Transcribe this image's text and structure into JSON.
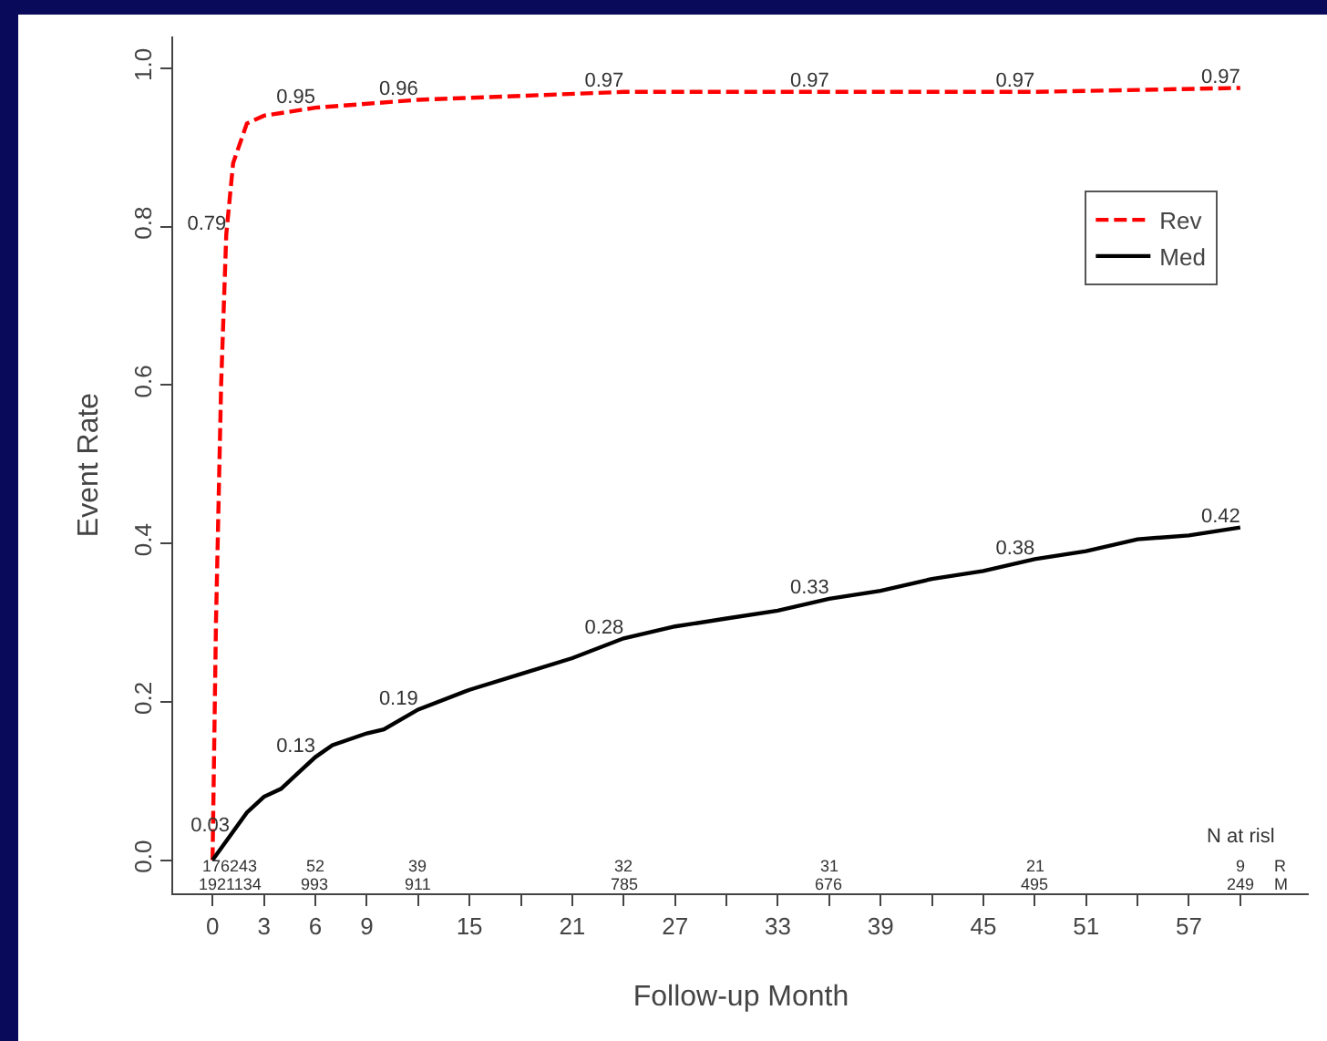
{
  "chart_data": {
    "type": "line",
    "xlabel": "Follow-up Month",
    "ylabel": "Event Rate",
    "xlim": [
      -2.3,
      64
    ],
    "ylim": [
      -0.042,
      1.04
    ],
    "xticks": [
      0,
      3,
      6,
      9,
      {
        "value": 12,
        "label": null
      },
      15,
      {
        "value": 18,
        "label": null
      },
      21,
      {
        "value": 24,
        "label": null
      },
      27,
      {
        "value": 30,
        "label": null
      },
      33,
      {
        "value": 36,
        "label": null
      },
      39,
      {
        "value": 42,
        "label": null
      },
      45,
      {
        "value": 48,
        "label": null
      },
      51,
      {
        "value": 54,
        "label": null
      },
      57,
      {
        "value": 60,
        "label": null
      }
    ],
    "yticks": [
      {
        "value": 0,
        "label": "0.0"
      },
      0.2,
      0.4,
      0.6,
      0.8,
      {
        "value": 1,
        "label": "1.0"
      }
    ],
    "legend": "right",
    "marker": "none",
    "series": [
      {
        "name": "Rev",
        "color": "#ff0000",
        "line_style": "dashed",
        "x": [
          0,
          0.2,
          0.5,
          0.8,
          1.2,
          2,
          3,
          6,
          12,
          24,
          36,
          48,
          60
        ],
        "values": [
          0,
          0.3,
          0.6,
          0.79,
          0.88,
          0.93,
          0.94,
          0.95,
          0.96,
          0.97,
          0.97,
          0.97,
          0.975
        ],
        "value_labels": [
          null,
          null,
          null,
          "0.79",
          null,
          null,
          null,
          "0.95",
          "0.96",
          "0.97",
          "0.97",
          "0.97",
          "0.97"
        ]
      },
      {
        "name": "Med",
        "color": "#000000",
        "line_style": "solid",
        "x": [
          0,
          1,
          2,
          3,
          4,
          5,
          6,
          7,
          9,
          10,
          12,
          15,
          18,
          21,
          24,
          27,
          30,
          33,
          36,
          39,
          42,
          45,
          48,
          51,
          54,
          57,
          60
        ],
        "values": [
          0,
          0.03,
          0.06,
          0.08,
          0.09,
          0.11,
          0.13,
          0.145,
          0.16,
          0.165,
          0.19,
          0.215,
          0.235,
          0.255,
          0.28,
          0.295,
          0.305,
          0.315,
          0.33,
          0.34,
          0.355,
          0.365,
          0.38,
          0.39,
          0.405,
          0.41,
          0.42
        ],
        "value_labels": [
          null,
          "0.03",
          null,
          null,
          null,
          null,
          "0.13",
          null,
          null,
          null,
          "0.19",
          null,
          null,
          null,
          "0.28",
          null,
          null,
          null,
          "0.33",
          null,
          null,
          null,
          "0.38",
          null,
          null,
          null,
          "0.42"
        ]
      }
    ],
    "annotations": [
      "N at risl",
      "176243",
      "1921134",
      "52",
      "993",
      "39",
      "911",
      "32",
      "785",
      "31",
      "676",
      "21",
      "495",
      "9",
      "249",
      "R",
      "M"
    ]
  }
}
